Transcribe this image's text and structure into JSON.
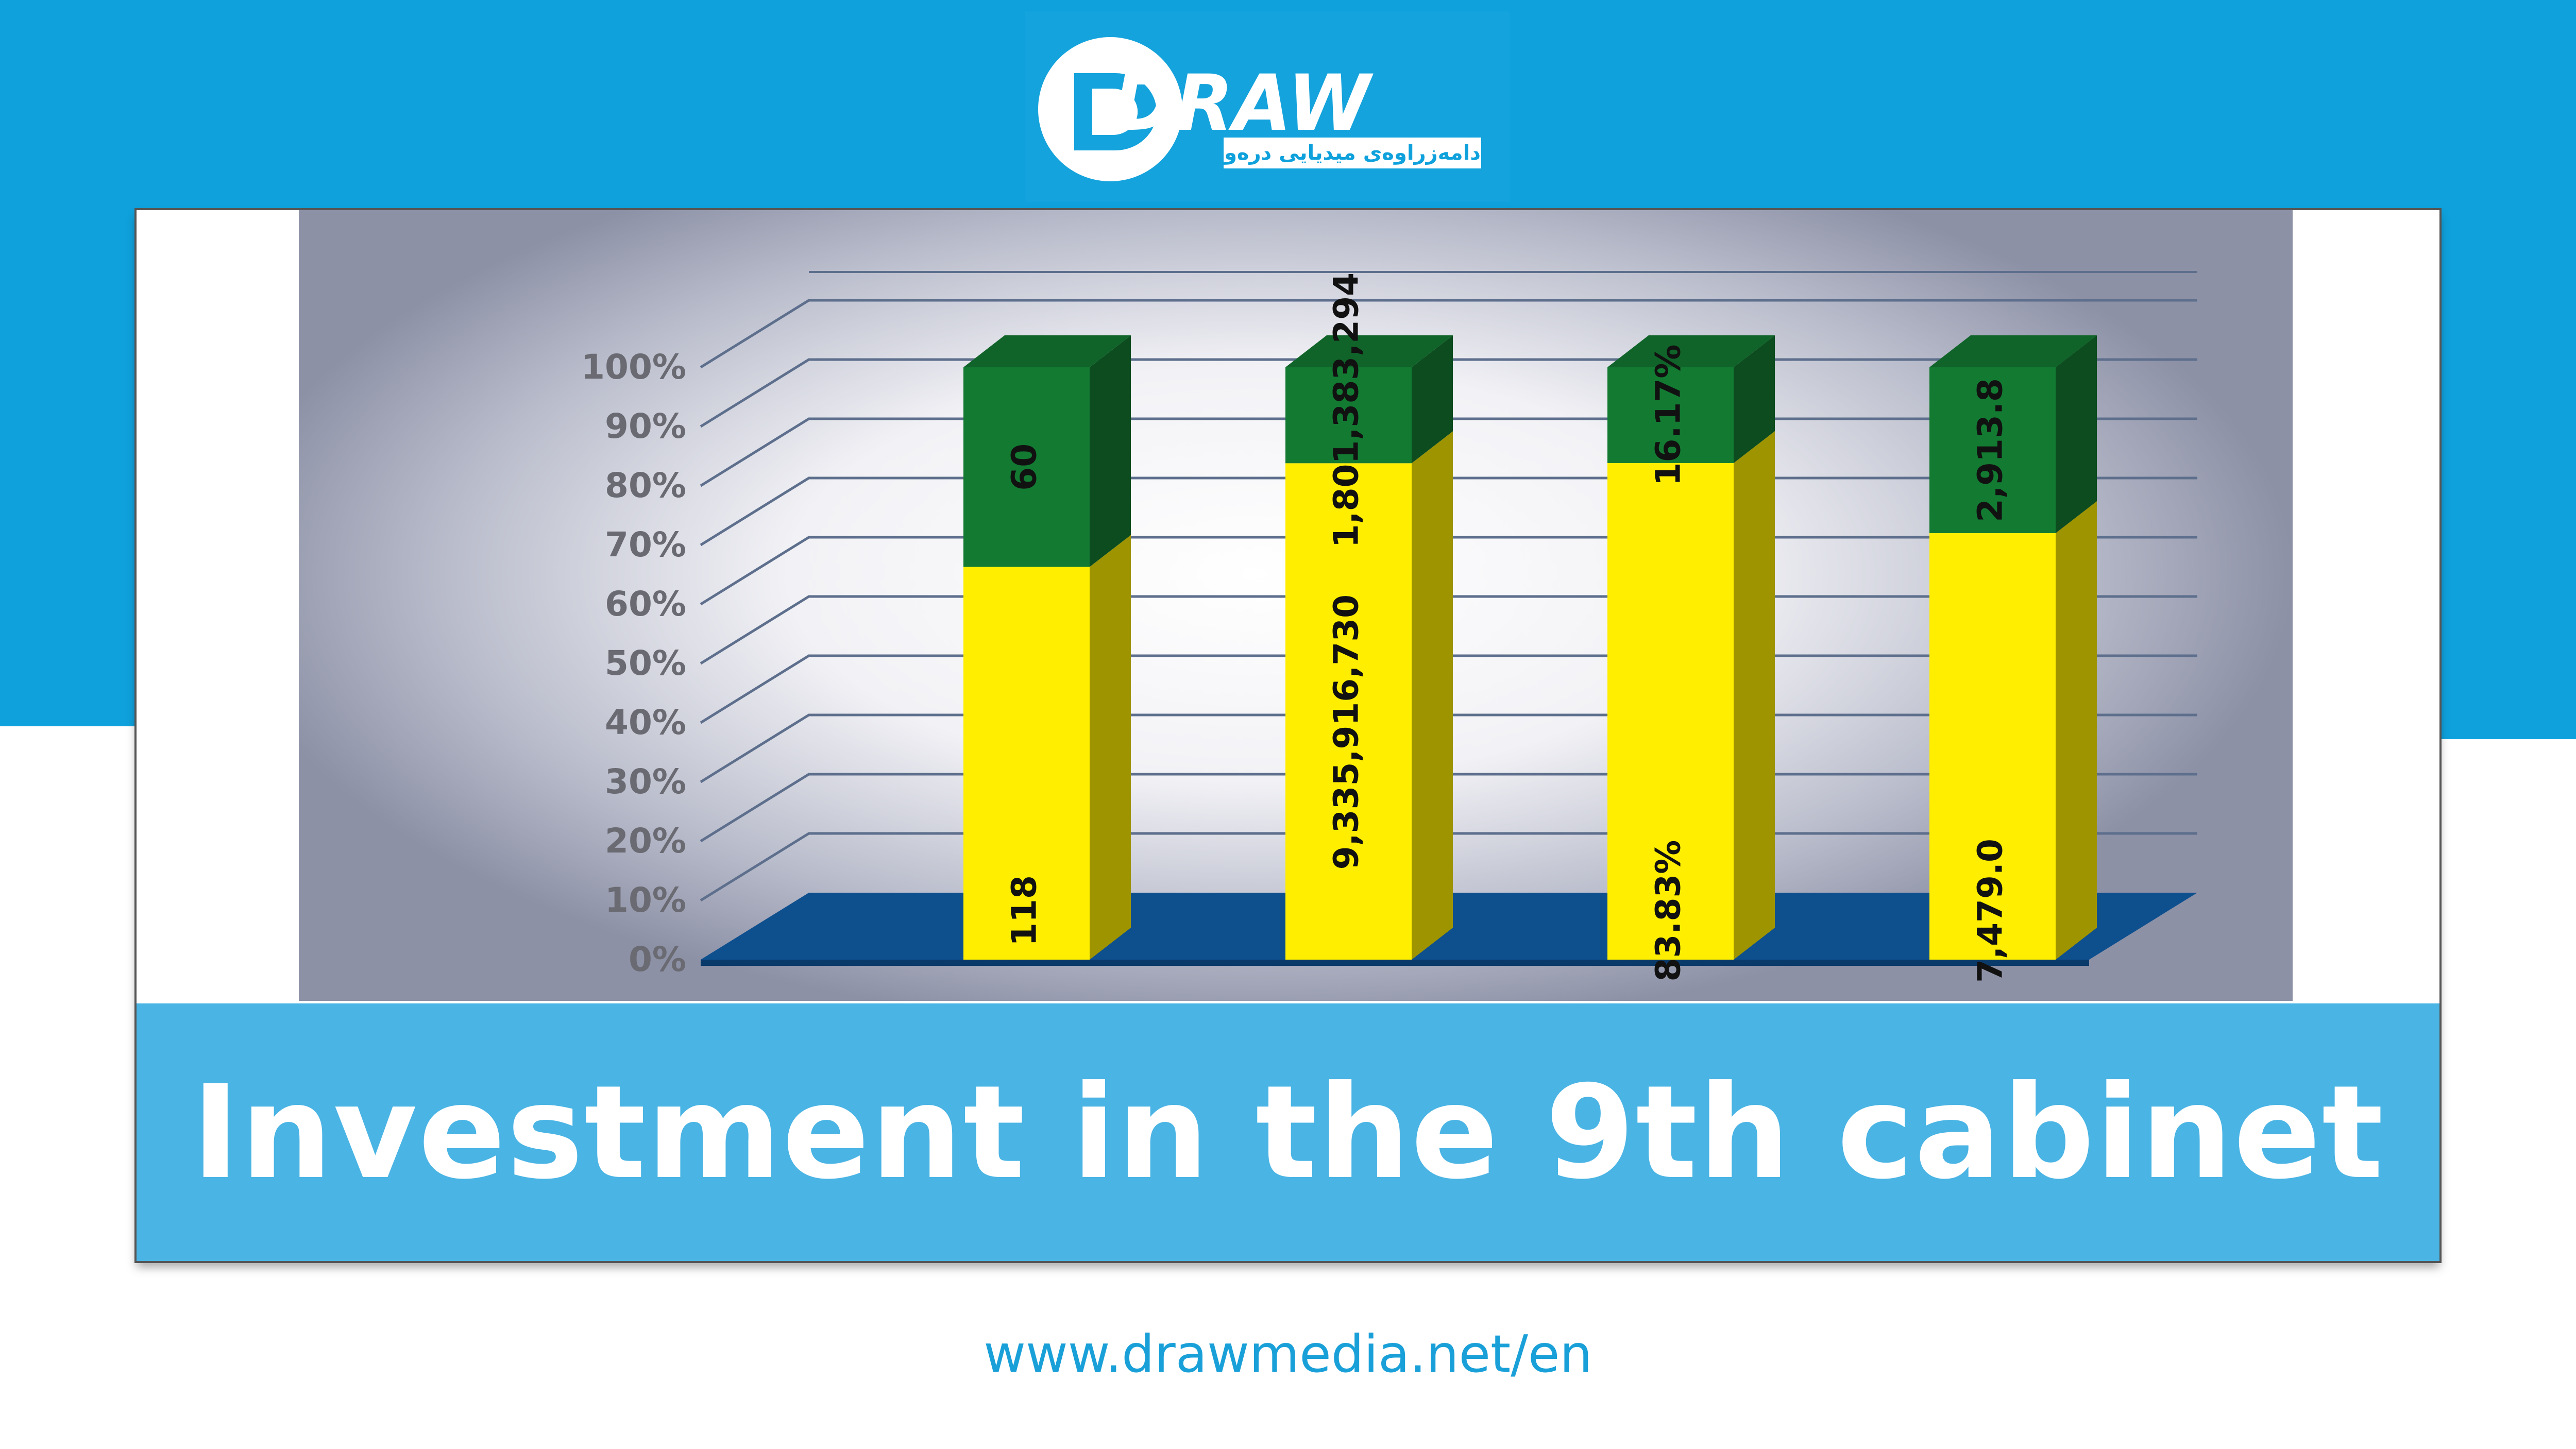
{
  "brand": {
    "logo_text": "DRAW",
    "logo_subtitle": "دامەزراوەی میدیایی درەو",
    "website": "www.drawmedia.net/en",
    "colors": {
      "band": "#0fa1dc",
      "title_bar": "#4ab4e4",
      "website": "#1aa0d8"
    }
  },
  "title": "Investment in the 9th cabinet",
  "chart_data": {
    "type": "bar",
    "stacked": true,
    "percent_stacked": true,
    "three_d": true,
    "ylim": [
      0,
      100
    ],
    "y_ticks": [
      "0%",
      "10%",
      "20%",
      "30%",
      "40%",
      "50%",
      "60%",
      "70%",
      "80%",
      "90%",
      "100%"
    ],
    "grid": true,
    "legend": "none",
    "categories": [
      "",
      "",
      "",
      ""
    ],
    "series": [
      {
        "color": "#ffee00",
        "labels": [
          "118",
          "9,335,916,730",
          "83.83%",
          "7,479.0"
        ],
        "values_percent": [
          66.3,
          83.8,
          83.83,
          72.0
        ]
      },
      {
        "color": "#137a32",
        "labels": [
          "60",
          "1,801,383,294",
          "16.17%",
          "2,913.8"
        ],
        "values_percent": [
          33.7,
          16.2,
          16.17,
          28.0
        ]
      }
    ]
  }
}
